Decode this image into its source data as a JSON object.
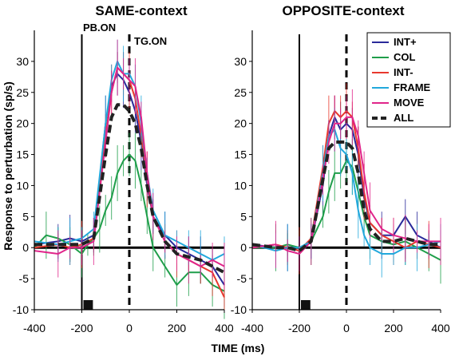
{
  "figure": {
    "xlabel": "TIME (ms)",
    "ylabel": "Response to perturbation (sp/s)"
  },
  "chart_data": [
    {
      "type": "line",
      "title": "SAME-context",
      "xlim": [
        -400,
        400
      ],
      "ylim": [
        -10,
        35
      ],
      "xticks": [
        -400,
        -200,
        0,
        200,
        400
      ],
      "yticks": [
        -10,
        -5,
        0,
        5,
        10,
        15,
        20,
        25,
        30
      ],
      "annotations": [
        {
          "text": "PB.ON",
          "x": -200
        },
        {
          "text": "TG.ON",
          "x": 0
        }
      ],
      "bar_marker": {
        "x_start": -200,
        "x_end": -160
      },
      "series": [
        {
          "name": "INT+",
          "color": "#2a2a9a",
          "x": [
            -400,
            -300,
            -250,
            -200,
            -150,
            -100,
            -75,
            -50,
            -25,
            0,
            25,
            50,
            75,
            100,
            150,
            200,
            250,
            300,
            350,
            400
          ],
          "y": [
            0.5,
            1,
            1.5,
            1,
            2,
            20,
            26,
            28,
            27,
            25,
            22,
            17,
            10,
            5,
            2,
            0,
            -1,
            -2,
            -3,
            -6
          ]
        },
        {
          "name": "COL",
          "color": "#1f9e4a",
          "x": [
            -400,
            -350,
            -300,
            -250,
            -200,
            -175,
            -150,
            -125,
            -100,
            -75,
            -50,
            -25,
            0,
            25,
            50,
            75,
            100,
            150,
            200,
            250,
            300,
            350,
            400
          ],
          "y": [
            0,
            2,
            1.5,
            0.5,
            -1,
            0.5,
            1.5,
            3,
            6,
            8,
            12,
            14,
            15,
            14,
            10,
            5,
            0,
            -3,
            -6,
            -4,
            -4,
            -6,
            -7
          ]
        },
        {
          "name": "INT-",
          "color": "#e8382e",
          "x": [
            -400,
            -300,
            -250,
            -200,
            -150,
            -100,
            -75,
            -50,
            -25,
            0,
            25,
            50,
            75,
            100,
            150,
            200,
            250,
            300,
            350,
            400
          ],
          "y": [
            0,
            0.5,
            0,
            0.5,
            1.5,
            18,
            25,
            29,
            28,
            27,
            24,
            18,
            11,
            5,
            1,
            -1,
            -2,
            -3,
            -4,
            -8
          ]
        },
        {
          "name": "FRAME",
          "color": "#22a8dc",
          "x": [
            -400,
            -300,
            -250,
            -200,
            -150,
            -100,
            -75,
            -50,
            -25,
            0,
            25,
            50,
            75,
            100,
            150,
            200,
            250,
            300,
            350,
            400
          ],
          "y": [
            1,
            0.5,
            1,
            1.5,
            3,
            20,
            27,
            30,
            28,
            28,
            26,
            20,
            12,
            6,
            2,
            1,
            0,
            -1,
            -2,
            -1
          ]
        },
        {
          "name": "MOVE",
          "color": "#e0258a",
          "x": [
            -400,
            -300,
            -250,
            -200,
            -150,
            -100,
            -75,
            -50,
            -25,
            0,
            25,
            50,
            75,
            100,
            150,
            200,
            250,
            300,
            350,
            400
          ],
          "y": [
            -0.5,
            -1,
            0,
            0,
            1,
            17,
            25,
            29,
            28,
            27,
            26,
            21,
            12,
            5,
            1,
            -1,
            -2,
            -3,
            -2,
            -3
          ]
        },
        {
          "name": "ALL",
          "color": "#222222",
          "dashed": true,
          "x": [
            -400,
            -300,
            -250,
            -200,
            -150,
            -100,
            -75,
            -50,
            -25,
            0,
            25,
            50,
            75,
            100,
            150,
            200,
            250,
            300,
            350,
            400
          ],
          "y": [
            0.5,
            0.5,
            0.5,
            0.5,
            1.5,
            15,
            21,
            23,
            23,
            22,
            20,
            16,
            10,
            5,
            1,
            -1,
            -1.5,
            -2,
            -3,
            -4
          ]
        }
      ]
    },
    {
      "type": "line",
      "title": "OPPOSITE-context",
      "xlim": [
        -400,
        400
      ],
      "ylim": [
        -10,
        35
      ],
      "xticks": [
        -400,
        -200,
        0,
        200,
        400
      ],
      "yticks": [
        -10,
        -5,
        0,
        5,
        10,
        15,
        20,
        25,
        30
      ],
      "bar_marker": {
        "x_start": -200,
        "x_end": -160
      },
      "series": [
        {
          "name": "INT+",
          "color": "#2a2a9a",
          "x": [
            -400,
            -300,
            -250,
            -200,
            -150,
            -100,
            -75,
            -50,
            -25,
            0,
            25,
            50,
            75,
            100,
            150,
            200,
            250,
            300,
            350,
            400
          ],
          "y": [
            0.5,
            0,
            0,
            -0.5,
            1,
            10,
            18,
            21,
            19,
            20,
            19,
            15,
            8,
            4,
            2,
            2,
            5,
            2,
            1,
            0
          ]
        },
        {
          "name": "COL",
          "color": "#1f9e4a",
          "x": [
            -400,
            -300,
            -250,
            -200,
            -150,
            -100,
            -75,
            -50,
            -25,
            0,
            25,
            50,
            75,
            100,
            150,
            200,
            250,
            300,
            350,
            400
          ],
          "y": [
            0,
            0,
            0.5,
            0,
            1,
            5,
            9,
            12,
            12,
            14,
            13,
            9,
            5,
            2,
            1,
            0.5,
            1,
            0,
            -1,
            -2
          ]
        },
        {
          "name": "INT-",
          "color": "#e8382e",
          "x": [
            -400,
            -300,
            -250,
            -200,
            -150,
            -100,
            -75,
            -50,
            -25,
            0,
            25,
            50,
            75,
            100,
            150,
            200,
            250,
            300,
            350,
            400
          ],
          "y": [
            0,
            0.5,
            0,
            -0.5,
            1.5,
            13,
            20,
            22,
            21,
            22,
            21,
            16,
            9,
            4,
            2,
            1,
            0,
            1,
            0.5,
            0
          ]
        },
        {
          "name": "FRAME",
          "color": "#22a8dc",
          "x": [
            -400,
            -300,
            -250,
            -200,
            -150,
            -100,
            -75,
            -50,
            -25,
            0,
            25,
            50,
            75,
            100,
            150,
            200,
            250,
            300,
            350,
            400
          ],
          "y": [
            0.5,
            -0.5,
            0,
            0,
            1,
            12,
            18,
            19,
            16,
            15,
            12,
            6,
            2,
            0,
            -1,
            -1,
            0,
            0,
            0.5,
            1
          ]
        },
        {
          "name": "MOVE",
          "color": "#e0258a",
          "x": [
            -400,
            -300,
            -250,
            -200,
            -150,
            -100,
            -75,
            -50,
            -25,
            0,
            25,
            50,
            75,
            100,
            150,
            200,
            250,
            300,
            350,
            400
          ],
          "y": [
            0,
            0.5,
            -0.5,
            -1,
            1,
            11,
            17,
            20,
            20,
            21,
            21,
            18,
            12,
            6,
            3,
            2,
            1.5,
            1,
            1,
            1
          ]
        },
        {
          "name": "ALL",
          "color": "#222222",
          "dashed": true,
          "x": [
            -400,
            -300,
            -250,
            -200,
            -150,
            -100,
            -75,
            -50,
            -25,
            0,
            25,
            50,
            75,
            100,
            150,
            200,
            250,
            300,
            350,
            400
          ],
          "y": [
            0.5,
            0,
            0,
            -0.5,
            1,
            11,
            16,
            17,
            17,
            17,
            16,
            12,
            6,
            3,
            1,
            1,
            1.5,
            1,
            0.5,
            0.5
          ]
        }
      ]
    }
  ]
}
